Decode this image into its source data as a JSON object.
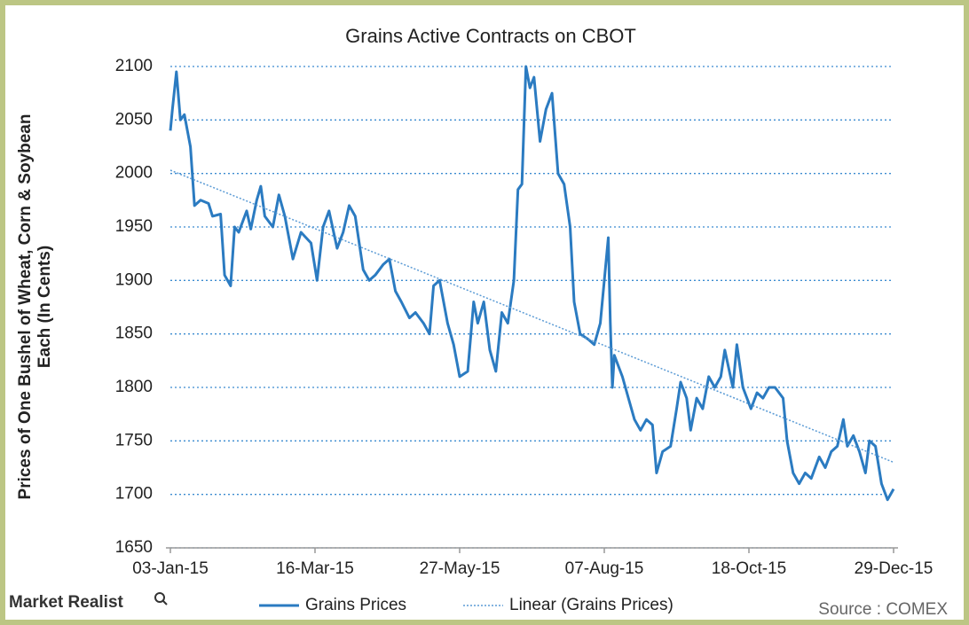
{
  "chart_data": {
    "type": "line",
    "title": "Grains Active Contracts on CBOT",
    "ylabel": [
      "Prices of One Bushel of Wheat, Corn & Soybean",
      "Each (In Cents)"
    ],
    "xlim": [
      "2015-01-03",
      "2015-12-29"
    ],
    "xticks": [
      {
        "value": "2015-01-03",
        "label": "03-Jan-15"
      },
      {
        "value": "2015-03-16",
        "label": "16-Mar-15"
      },
      {
        "value": "2015-05-27",
        "label": "27-May-15"
      },
      {
        "value": "2015-08-07",
        "label": "07-Aug-15"
      },
      {
        "value": "2015-10-18",
        "label": "18-Oct-15"
      },
      {
        "value": "2015-12-29",
        "label": "29-Dec-15"
      }
    ],
    "ylim": [
      1650,
      2100
    ],
    "yticks": [
      1650,
      1700,
      1750,
      1800,
      1850,
      1900,
      1950,
      2000,
      2050,
      2100
    ],
    "grid": true,
    "series": [
      {
        "name": "Grains Prices",
        "color": "#2b7bc1",
        "style": "solid",
        "x": [
          "2015-01-03",
          "2015-01-04",
          "2015-01-06",
          "2015-01-08",
          "2015-01-10",
          "2015-01-13",
          "2015-01-15",
          "2015-01-18",
          "2015-01-22",
          "2015-01-24",
          "2015-01-28",
          "2015-01-30",
          "2015-02-02",
          "2015-02-04",
          "2015-02-06",
          "2015-02-10",
          "2015-02-12",
          "2015-02-15",
          "2015-02-17",
          "2015-02-19",
          "2015-02-23",
          "2015-02-26",
          "2015-03-01",
          "2015-03-05",
          "2015-03-09",
          "2015-03-14",
          "2015-03-17",
          "2015-03-20",
          "2015-03-23",
          "2015-03-27",
          "2015-03-30",
          "2015-04-02",
          "2015-04-05",
          "2015-04-09",
          "2015-04-12",
          "2015-04-15",
          "2015-04-19",
          "2015-04-22",
          "2015-04-25",
          "2015-04-28",
          "2015-05-02",
          "2015-05-05",
          "2015-05-09",
          "2015-05-12",
          "2015-05-14",
          "2015-05-17",
          "2015-05-21",
          "2015-05-24",
          "2015-05-27",
          "2015-05-31",
          "2015-06-03",
          "2015-06-05",
          "2015-06-08",
          "2015-06-11",
          "2015-06-14",
          "2015-06-17",
          "2015-06-20",
          "2015-06-23",
          "2015-06-25",
          "2015-06-27",
          "2015-06-29",
          "2015-07-01",
          "2015-07-03",
          "2015-07-06",
          "2015-07-09",
          "2015-07-12",
          "2015-07-15",
          "2015-07-18",
          "2015-07-21",
          "2015-07-23",
          "2015-07-26",
          "2015-07-30",
          "2015-08-02",
          "2015-08-05",
          "2015-08-07",
          "2015-08-09",
          "2015-08-10",
          "2015-08-11",
          "2015-08-12",
          "2015-08-16",
          "2015-08-19",
          "2015-08-22",
          "2015-08-25",
          "2015-08-28",
          "2015-08-31",
          "2015-09-02",
          "2015-09-05",
          "2015-09-09",
          "2015-09-12",
          "2015-09-14",
          "2015-09-17",
          "2015-09-19",
          "2015-09-22",
          "2015-09-25",
          "2015-09-28",
          "2015-10-01",
          "2015-10-04",
          "2015-10-06",
          "2015-10-10",
          "2015-10-12",
          "2015-10-15",
          "2015-10-19",
          "2015-10-22",
          "2015-10-25",
          "2015-10-28",
          "2015-10-31",
          "2015-11-04",
          "2015-11-06",
          "2015-11-09",
          "2015-11-12",
          "2015-11-15",
          "2015-11-18",
          "2015-11-22",
          "2015-11-25",
          "2015-11-28",
          "2015-12-01",
          "2015-12-04",
          "2015-12-06",
          "2015-12-09",
          "2015-12-12",
          "2015-12-15",
          "2015-12-17",
          "2015-12-20",
          "2015-12-23",
          "2015-12-26",
          "2015-12-29"
        ],
        "values": [
          2040,
          2060,
          2095,
          2050,
          2055,
          2025,
          1970,
          1975,
          1972,
          1960,
          1962,
          1905,
          1895,
          1950,
          1945,
          1965,
          1948,
          1975,
          1988,
          1960,
          1950,
          1980,
          1960,
          1920,
          1945,
          1935,
          1900,
          1950,
          1965,
          1930,
          1945,
          1970,
          1960,
          1910,
          1900,
          1905,
          1915,
          1920,
          1890,
          1880,
          1865,
          1870,
          1860,
          1850,
          1895,
          1900,
          1860,
          1840,
          1810,
          1815,
          1880,
          1860,
          1880,
          1835,
          1815,
          1870,
          1860,
          1900,
          1985,
          1990,
          2100,
          2080,
          2090,
          2030,
          2060,
          2075,
          2000,
          1990,
          1950,
          1880,
          1850,
          1845,
          1840,
          1860,
          1900,
          1940,
          1860,
          1800,
          1830,
          1810,
          1790,
          1770,
          1760,
          1770,
          1765,
          1720,
          1740,
          1745,
          1780,
          1805,
          1790,
          1760,
          1790,
          1780,
          1810,
          1800,
          1810,
          1835,
          1800,
          1840,
          1800,
          1780,
          1795,
          1790,
          1800,
          1800,
          1790,
          1750,
          1720,
          1710,
          1720,
          1715,
          1735,
          1725,
          1740,
          1745,
          1770,
          1745,
          1755,
          1740,
          1720,
          1750,
          1745,
          1710,
          1695,
          1705
        ]
      },
      {
        "name": "Linear (Grains Prices)",
        "color": "#5b9bd5",
        "style": "dotted",
        "x": [
          "2015-01-03",
          "2015-12-29"
        ],
        "values": [
          2003,
          1730
        ]
      }
    ],
    "brand": "Market Realist",
    "source": "Source : COMEX"
  }
}
